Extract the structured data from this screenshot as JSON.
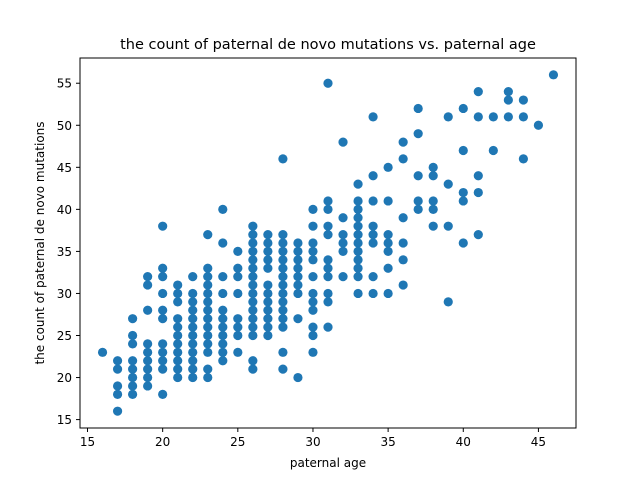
{
  "chart_data": {
    "type": "scatter",
    "title": "the count of paternal de novo mutations vs. paternal age",
    "xlabel": "paternal age",
    "ylabel": "the count of paternal de novo mutations",
    "xlim": [
      14.5,
      47.5
    ],
    "ylim": [
      14.0,
      58.0
    ],
    "xticks": [
      15,
      20,
      25,
      30,
      35,
      40,
      45
    ],
    "yticks": [
      15,
      20,
      25,
      30,
      35,
      40,
      45,
      50,
      55
    ],
    "grid": false,
    "marker_color": "#1f77b4",
    "points": [
      [
        16,
        23
      ],
      [
        17,
        16
      ],
      [
        17,
        18
      ],
      [
        17,
        19
      ],
      [
        17,
        21
      ],
      [
        17,
        22
      ],
      [
        18,
        18
      ],
      [
        18,
        19
      ],
      [
        18,
        20
      ],
      [
        18,
        21
      ],
      [
        18,
        22
      ],
      [
        18,
        24
      ],
      [
        18,
        25
      ],
      [
        18,
        27
      ],
      [
        19,
        19
      ],
      [
        19,
        20
      ],
      [
        19,
        21
      ],
      [
        19,
        22
      ],
      [
        19,
        23
      ],
      [
        19,
        24
      ],
      [
        19,
        28
      ],
      [
        19,
        31
      ],
      [
        19,
        32
      ],
      [
        20,
        18
      ],
      [
        20,
        21
      ],
      [
        20,
        22
      ],
      [
        20,
        23
      ],
      [
        20,
        24
      ],
      [
        20,
        27
      ],
      [
        20,
        28
      ],
      [
        20,
        30
      ],
      [
        20,
        32
      ],
      [
        20,
        33
      ],
      [
        20,
        38
      ],
      [
        21,
        20
      ],
      [
        21,
        21
      ],
      [
        21,
        22
      ],
      [
        21,
        23
      ],
      [
        21,
        24
      ],
      [
        21,
        25
      ],
      [
        21,
        26
      ],
      [
        21,
        27
      ],
      [
        21,
        29
      ],
      [
        21,
        30
      ],
      [
        21,
        31
      ],
      [
        22,
        20
      ],
      [
        22,
        21
      ],
      [
        22,
        22
      ],
      [
        22,
        23
      ],
      [
        22,
        24
      ],
      [
        22,
        25
      ],
      [
        22,
        26
      ],
      [
        22,
        27
      ],
      [
        22,
        28
      ],
      [
        22,
        29
      ],
      [
        22,
        30
      ],
      [
        22,
        32
      ],
      [
        23,
        20
      ],
      [
        23,
        21
      ],
      [
        23,
        23
      ],
      [
        23,
        24
      ],
      [
        23,
        25
      ],
      [
        23,
        26
      ],
      [
        23,
        27
      ],
      [
        23,
        28
      ],
      [
        23,
        29
      ],
      [
        23,
        30
      ],
      [
        23,
        31
      ],
      [
        23,
        32
      ],
      [
        23,
        33
      ],
      [
        23,
        37
      ],
      [
        24,
        22
      ],
      [
        24,
        23
      ],
      [
        24,
        24
      ],
      [
        24,
        25
      ],
      [
        24,
        26
      ],
      [
        24,
        27
      ],
      [
        24,
        28
      ],
      [
        24,
        30
      ],
      [
        24,
        32
      ],
      [
        24,
        36
      ],
      [
        24,
        40
      ],
      [
        25,
        23
      ],
      [
        25,
        25
      ],
      [
        25,
        26
      ],
      [
        25,
        27
      ],
      [
        25,
        30
      ],
      [
        25,
        32
      ],
      [
        25,
        33
      ],
      [
        25,
        35
      ],
      [
        26,
        21
      ],
      [
        26,
        22
      ],
      [
        26,
        25
      ],
      [
        26,
        26
      ],
      [
        26,
        27
      ],
      [
        26,
        28
      ],
      [
        26,
        29
      ],
      [
        26,
        30
      ],
      [
        26,
        31
      ],
      [
        26,
        32
      ],
      [
        26,
        33
      ],
      [
        26,
        34
      ],
      [
        26,
        35
      ],
      [
        26,
        36
      ],
      [
        26,
        37
      ],
      [
        26,
        38
      ],
      [
        27,
        25
      ],
      [
        27,
        26
      ],
      [
        27,
        27
      ],
      [
        27,
        28
      ],
      [
        27,
        29
      ],
      [
        27,
        30
      ],
      [
        27,
        31
      ],
      [
        27,
        33
      ],
      [
        27,
        34
      ],
      [
        27,
        35
      ],
      [
        27,
        36
      ],
      [
        27,
        37
      ],
      [
        28,
        21
      ],
      [
        28,
        23
      ],
      [
        28,
        26
      ],
      [
        28,
        27
      ],
      [
        28,
        28
      ],
      [
        28,
        29
      ],
      [
        28,
        30
      ],
      [
        28,
        31
      ],
      [
        28,
        32
      ],
      [
        28,
        33
      ],
      [
        28,
        34
      ],
      [
        28,
        35
      ],
      [
        28,
        36
      ],
      [
        28,
        37
      ],
      [
        28,
        46
      ],
      [
        29,
        20
      ],
      [
        29,
        27
      ],
      [
        29,
        30
      ],
      [
        29,
        31
      ],
      [
        29,
        32
      ],
      [
        29,
        33
      ],
      [
        29,
        34
      ],
      [
        29,
        35
      ],
      [
        29,
        36
      ],
      [
        30,
        23
      ],
      [
        30,
        25
      ],
      [
        30,
        26
      ],
      [
        30,
        28
      ],
      [
        30,
        29
      ],
      [
        30,
        30
      ],
      [
        30,
        32
      ],
      [
        30,
        34
      ],
      [
        30,
        35
      ],
      [
        30,
        36
      ],
      [
        30,
        38
      ],
      [
        30,
        40
      ],
      [
        31,
        26
      ],
      [
        31,
        29
      ],
      [
        31,
        30
      ],
      [
        31,
        32
      ],
      [
        31,
        33
      ],
      [
        31,
        34
      ],
      [
        31,
        37
      ],
      [
        31,
        38
      ],
      [
        31,
        40
      ],
      [
        31,
        41
      ],
      [
        31,
        55
      ],
      [
        32,
        32
      ],
      [
        32,
        35
      ],
      [
        32,
        36
      ],
      [
        32,
        37
      ],
      [
        32,
        39
      ],
      [
        32,
        48
      ],
      [
        33,
        30
      ],
      [
        33,
        32
      ],
      [
        33,
        33
      ],
      [
        33,
        34
      ],
      [
        33,
        35
      ],
      [
        33,
        36
      ],
      [
        33,
        37
      ],
      [
        33,
        38
      ],
      [
        33,
        39
      ],
      [
        33,
        40
      ],
      [
        33,
        41
      ],
      [
        33,
        43
      ],
      [
        34,
        30
      ],
      [
        34,
        32
      ],
      [
        34,
        36
      ],
      [
        34,
        37
      ],
      [
        34,
        38
      ],
      [
        34,
        41
      ],
      [
        34,
        44
      ],
      [
        34,
        51
      ],
      [
        35,
        30
      ],
      [
        35,
        33
      ],
      [
        35,
        35
      ],
      [
        35,
        36
      ],
      [
        35,
        37
      ],
      [
        35,
        41
      ],
      [
        35,
        45
      ],
      [
        36,
        31
      ],
      [
        36,
        34
      ],
      [
        36,
        36
      ],
      [
        36,
        39
      ],
      [
        36,
        46
      ],
      [
        36,
        48
      ],
      [
        37,
        40
      ],
      [
        37,
        41
      ],
      [
        37,
        44
      ],
      [
        37,
        49
      ],
      [
        37,
        52
      ],
      [
        38,
        38
      ],
      [
        38,
        40
      ],
      [
        38,
        41
      ],
      [
        38,
        44
      ],
      [
        38,
        45
      ],
      [
        39,
        29
      ],
      [
        39,
        38
      ],
      [
        39,
        43
      ],
      [
        39,
        51
      ],
      [
        40,
        36
      ],
      [
        40,
        41
      ],
      [
        40,
        42
      ],
      [
        40,
        47
      ],
      [
        40,
        52
      ],
      [
        41,
        37
      ],
      [
        41,
        42
      ],
      [
        41,
        44
      ],
      [
        41,
        51
      ],
      [
        41,
        54
      ],
      [
        42,
        47
      ],
      [
        42,
        51
      ],
      [
        43,
        51
      ],
      [
        43,
        53
      ],
      [
        43,
        54
      ],
      [
        44,
        46
      ],
      [
        44,
        51
      ],
      [
        44,
        53
      ],
      [
        45,
        50
      ],
      [
        46,
        56
      ]
    ]
  }
}
